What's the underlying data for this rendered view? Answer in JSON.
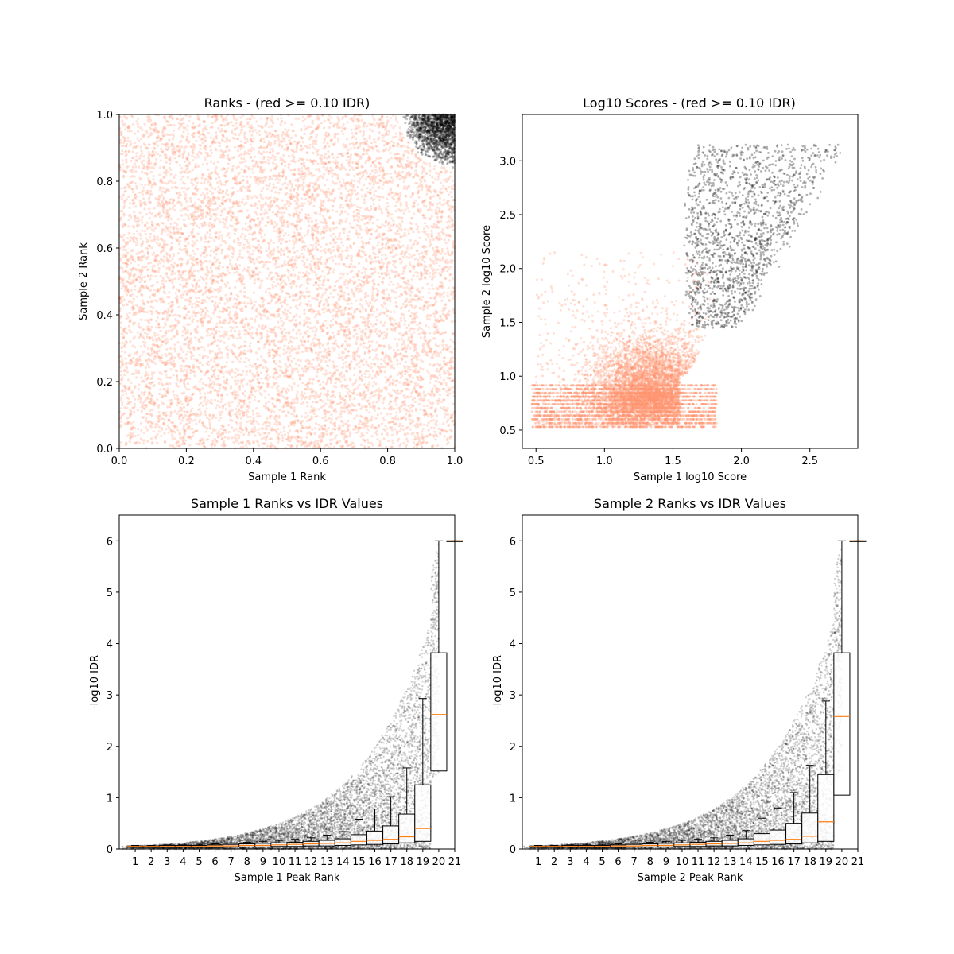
{
  "chart_data": [
    {
      "type": "scatter",
      "title": "Ranks - (red >= 0.10 IDR)",
      "xlabel": "Sample 1 Rank",
      "ylabel": "Sample 2 Rank",
      "xlim": [
        0.0,
        1.0
      ],
      "ylim": [
        0.0,
        1.0
      ],
      "xticks": [
        "0.0",
        "0.2",
        "0.4",
        "0.6",
        "0.8",
        "1.0"
      ],
      "yticks": [
        "0.0",
        "0.2",
        "0.4",
        "0.6",
        "0.8",
        "1.0"
      ],
      "series": [
        {
          "color": "#ff9470",
          "description": "peaks with IDR >= 0.10, uniformly spread over the full rank square",
          "approx_count": 30000
        },
        {
          "color": "#000000",
          "description": "peaks passing threshold, clustered in top-right corner (x >= 0.83, y >= 0.83)",
          "approx_count": 1500
        }
      ],
      "grid": false
    },
    {
      "type": "scatter",
      "title": "Log10 Scores - (red >= 0.10 IDR)",
      "xlabel": "Sample 1 log10 Score",
      "ylabel": "Sample 2 log10 Score",
      "xlim": [
        0.4,
        2.85
      ],
      "ylim": [
        0.33,
        3.43
      ],
      "xticks": [
        "0.5",
        "1.0",
        "1.5",
        "2.0",
        "2.5"
      ],
      "yticks": [
        "0.5",
        "1.0",
        "1.5",
        "2.0",
        "2.5",
        "3.0"
      ],
      "series": [
        {
          "color": "#ff9470",
          "description": "IDR >= 0.10, dense cloud centered near (1.35, 0.85), x 0.47-1.85, y 0.53-2.1",
          "approx_count": 30000
        },
        {
          "color": "#000000",
          "description": "passing peaks, x 1.58-2.75, y 1.4-3.25",
          "approx_count": 2000
        }
      ],
      "grid": false
    },
    {
      "type": "scatter+box",
      "title": "Sample 1 Ranks vs IDR Values",
      "xlabel": "Sample 1 Peak Rank",
      "ylabel": "-log10 IDR",
      "xlim": [
        0,
        21
      ],
      "ylim": [
        0,
        6.5
      ],
      "xticks": [
        "1",
        "2",
        "3",
        "4",
        "5",
        "6",
        "7",
        "8",
        "9",
        "10",
        "11",
        "12",
        "13",
        "14",
        "15",
        "16",
        "17",
        "18",
        "19",
        "20",
        "21"
      ],
      "yticks": [
        "0",
        "1",
        "2",
        "3",
        "4",
        "5",
        "6"
      ],
      "boxes": [
        {
          "pos": 1,
          "q1": 0.03,
          "median": 0.05,
          "q3": 0.06,
          "whisk_hi": 0.07
        },
        {
          "pos": 2,
          "q1": 0.03,
          "median": 0.05,
          "q3": 0.06,
          "whisk_hi": 0.07
        },
        {
          "pos": 3,
          "q1": 0.03,
          "median": 0.05,
          "q3": 0.07,
          "whisk_hi": 0.08
        },
        {
          "pos": 4,
          "q1": 0.03,
          "median": 0.05,
          "q3": 0.07,
          "whisk_hi": 0.08
        },
        {
          "pos": 5,
          "q1": 0.03,
          "median": 0.05,
          "q3": 0.07,
          "whisk_hi": 0.09
        },
        {
          "pos": 6,
          "q1": 0.03,
          "median": 0.06,
          "q3": 0.08,
          "whisk_hi": 0.1
        },
        {
          "pos": 7,
          "q1": 0.04,
          "median": 0.06,
          "q3": 0.09,
          "whisk_hi": 0.12
        },
        {
          "pos": 8,
          "q1": 0.04,
          "median": 0.07,
          "q3": 0.1,
          "whisk_hi": 0.13
        },
        {
          "pos": 9,
          "q1": 0.04,
          "median": 0.07,
          "q3": 0.11,
          "whisk_hi": 0.15
        },
        {
          "pos": 10,
          "q1": 0.05,
          "median": 0.08,
          "q3": 0.12,
          "whisk_hi": 0.17
        },
        {
          "pos": 11,
          "q1": 0.05,
          "median": 0.09,
          "q3": 0.13,
          "whisk_hi": 0.19
        },
        {
          "pos": 12,
          "q1": 0.06,
          "median": 0.1,
          "q3": 0.15,
          "whisk_hi": 0.22
        },
        {
          "pos": 13,
          "q1": 0.06,
          "median": 0.11,
          "q3": 0.17,
          "whisk_hi": 0.27
        },
        {
          "pos": 14,
          "q1": 0.07,
          "median": 0.12,
          "q3": 0.2,
          "whisk_hi": 0.34
        },
        {
          "pos": 15,
          "q1": 0.08,
          "median": 0.15,
          "q3": 0.28,
          "whisk_hi": 0.58
        },
        {
          "pos": 16,
          "q1": 0.09,
          "median": 0.17,
          "q3": 0.35,
          "whisk_hi": 0.78
        },
        {
          "pos": 17,
          "q1": 0.1,
          "median": 0.19,
          "q3": 0.45,
          "whisk_hi": 1.02
        },
        {
          "pos": 18,
          "q1": 0.12,
          "median": 0.24,
          "q3": 0.68,
          "whisk_hi": 1.58
        },
        {
          "pos": 19,
          "q1": 0.15,
          "median": 0.4,
          "q3": 1.25,
          "whisk_hi": 2.93
        },
        {
          "pos": 20,
          "q1": 1.52,
          "median": 2.62,
          "q3": 3.82,
          "whisk_hi": 6.0
        },
        {
          "pos": 21,
          "q1": 6.0,
          "median": 6.0,
          "q3": 6.0,
          "whisk_hi": 6.0
        }
      ],
      "grid": false
    },
    {
      "type": "scatter+box",
      "title": "Sample 2 Ranks vs IDR Values",
      "xlabel": "Sample 2 Peak Rank",
      "ylabel": "-log10 IDR",
      "xlim": [
        0,
        21
      ],
      "ylim": [
        0,
        6.5
      ],
      "xticks": [
        "1",
        "2",
        "3",
        "4",
        "5",
        "6",
        "7",
        "8",
        "9",
        "10",
        "11",
        "12",
        "13",
        "14",
        "15",
        "16",
        "17",
        "18",
        "19",
        "20",
        "21"
      ],
      "yticks": [
        "0",
        "1",
        "2",
        "3",
        "4",
        "5",
        "6"
      ],
      "boxes": [
        {
          "pos": 1,
          "q1": 0.03,
          "median": 0.05,
          "q3": 0.06,
          "whisk_hi": 0.07
        },
        {
          "pos": 2,
          "q1": 0.03,
          "median": 0.05,
          "q3": 0.06,
          "whisk_hi": 0.07
        },
        {
          "pos": 3,
          "q1": 0.03,
          "median": 0.05,
          "q3": 0.07,
          "whisk_hi": 0.08
        },
        {
          "pos": 4,
          "q1": 0.03,
          "median": 0.05,
          "q3": 0.07,
          "whisk_hi": 0.08
        },
        {
          "pos": 5,
          "q1": 0.03,
          "median": 0.05,
          "q3": 0.07,
          "whisk_hi": 0.09
        },
        {
          "pos": 6,
          "q1": 0.03,
          "median": 0.06,
          "q3": 0.08,
          "whisk_hi": 0.1
        },
        {
          "pos": 7,
          "q1": 0.04,
          "median": 0.06,
          "q3": 0.09,
          "whisk_hi": 0.12
        },
        {
          "pos": 8,
          "q1": 0.04,
          "median": 0.07,
          "q3": 0.1,
          "whisk_hi": 0.13
        },
        {
          "pos": 9,
          "q1": 0.04,
          "median": 0.07,
          "q3": 0.11,
          "whisk_hi": 0.15
        },
        {
          "pos": 10,
          "q1": 0.05,
          "median": 0.08,
          "q3": 0.12,
          "whisk_hi": 0.17
        },
        {
          "pos": 11,
          "q1": 0.05,
          "median": 0.09,
          "q3": 0.13,
          "whisk_hi": 0.19
        },
        {
          "pos": 12,
          "q1": 0.06,
          "median": 0.1,
          "q3": 0.15,
          "whisk_hi": 0.22
        },
        {
          "pos": 13,
          "q1": 0.06,
          "median": 0.11,
          "q3": 0.17,
          "whisk_hi": 0.27
        },
        {
          "pos": 14,
          "q1": 0.07,
          "median": 0.12,
          "q3": 0.2,
          "whisk_hi": 0.36
        },
        {
          "pos": 15,
          "q1": 0.08,
          "median": 0.15,
          "q3": 0.3,
          "whisk_hi": 0.6
        },
        {
          "pos": 16,
          "q1": 0.09,
          "median": 0.17,
          "q3": 0.37,
          "whisk_hi": 0.8
        },
        {
          "pos": 17,
          "q1": 0.1,
          "median": 0.19,
          "q3": 0.5,
          "whisk_hi": 1.1
        },
        {
          "pos": 18,
          "q1": 0.12,
          "median": 0.25,
          "q3": 0.7,
          "whisk_hi": 1.63
        },
        {
          "pos": 19,
          "q1": 0.15,
          "median": 0.53,
          "q3": 1.45,
          "whisk_hi": 2.88
        },
        {
          "pos": 20,
          "q1": 1.05,
          "median": 2.58,
          "q3": 3.82,
          "whisk_hi": 6.0
        },
        {
          "pos": 21,
          "q1": 6.0,
          "median": 6.0,
          "q3": 6.0,
          "whisk_hi": 6.0
        }
      ],
      "grid": false
    }
  ],
  "colors": {
    "red_points": "#ff9470",
    "black_points": "#000000",
    "median_line": "#ff7f0e",
    "axis": "#000000"
  }
}
